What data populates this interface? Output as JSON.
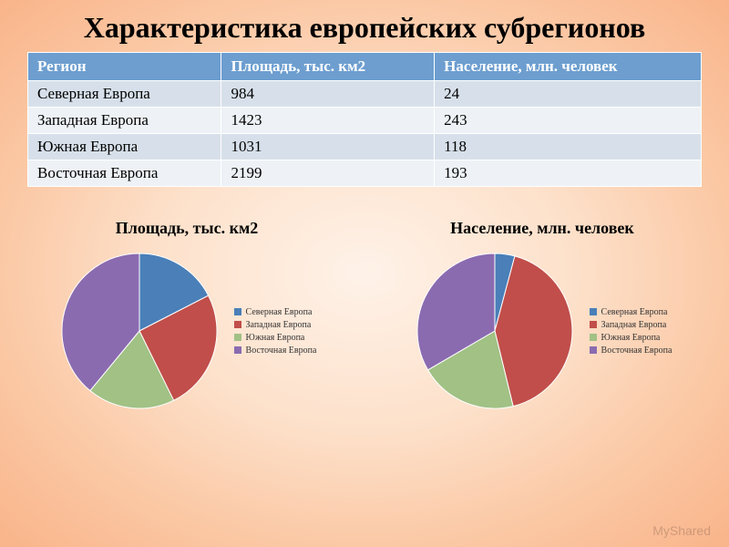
{
  "title": "Характеристика европейских субрегионов",
  "table": {
    "columns": [
      "Регион",
      "Площадь, тыс. км2",
      "Население, млн. человек"
    ],
    "rows": [
      [
        "Северная Европа",
        "984",
        "24"
      ],
      [
        "Западная Европа",
        "1423",
        "243"
      ],
      [
        "Южная Европа",
        "1031",
        "118"
      ],
      [
        "Восточная Европа",
        "2199",
        "193"
      ]
    ],
    "header_bg": "#6d9ecf",
    "header_fg": "#ffffff",
    "row_odd_bg": "#d7e0ea",
    "row_even_bg": "#eef2f6",
    "font_size": 17
  },
  "charts": {
    "area": {
      "title": "Площадь, тыс. км2",
      "type": "pie",
      "radius": 85,
      "labels": [
        "Северная Европа",
        "Западная Европа",
        "Южная Европа",
        "Восточная Европа"
      ],
      "values": [
        984,
        1423,
        1031,
        2199
      ],
      "colors": [
        "#4a7fb8",
        "#c14e4a",
        "#a1c185",
        "#8b6bb0"
      ],
      "start_angle": -90
    },
    "population": {
      "title": "Население, млн. человек",
      "type": "pie",
      "radius": 85,
      "labels": [
        "Северная Европа",
        "Западная Европа",
        "Южная Европа",
        "Восточная Европа"
      ],
      "values": [
        24,
        243,
        118,
        193
      ],
      "colors": [
        "#4a7fb8",
        "#c14e4a",
        "#a1c185",
        "#8b6bb0"
      ],
      "start_angle": -90
    },
    "legend_font_size": 10,
    "title_font_size": 18
  },
  "watermark": "MyShared",
  "background": {
    "type": "radial-gradient",
    "stops": [
      "#fef2e8",
      "#fde1cb",
      "#fbc9a6",
      "#f9b48a"
    ]
  }
}
